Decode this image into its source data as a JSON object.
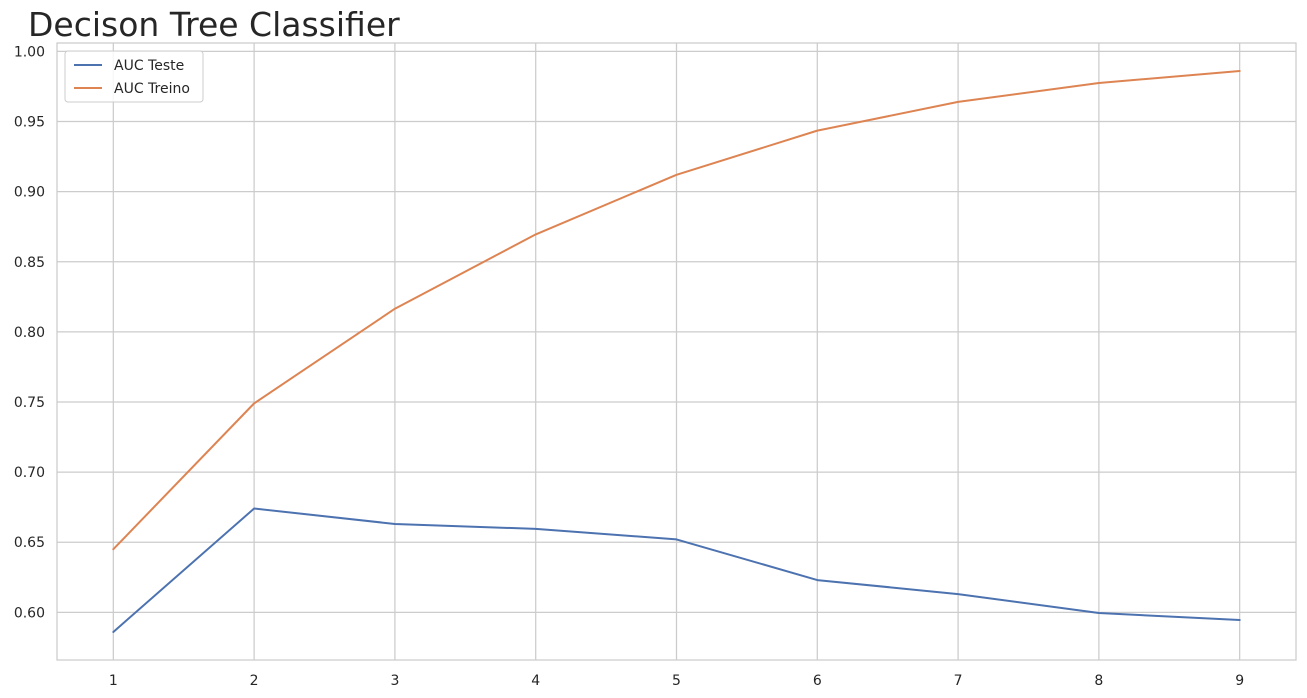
{
  "chart_data": {
    "type": "line",
    "title": "Decison Tree Classifier",
    "xlabel": "",
    "ylabel": "",
    "x": [
      1,
      2,
      3,
      4,
      5,
      6,
      7,
      8,
      9
    ],
    "xticks": [
      "1",
      "2",
      "3",
      "4",
      "5",
      "6",
      "7",
      "8",
      "9"
    ],
    "xlim": [
      0.6,
      9.4
    ],
    "ylim": [
      0.566,
      1.006
    ],
    "yticks": [
      "0.60",
      "0.65",
      "0.70",
      "0.75",
      "0.80",
      "0.85",
      "0.90",
      "0.95",
      "1.00"
    ],
    "ytick_values": [
      0.6,
      0.65,
      0.7,
      0.75,
      0.8,
      0.85,
      0.9,
      0.95,
      1.0
    ],
    "grid": true,
    "legend_position": "top-left",
    "series": [
      {
        "name": "AUC Teste",
        "color": "#4c72b0",
        "values": [
          0.586,
          0.674,
          0.663,
          0.6595,
          0.652,
          0.623,
          0.613,
          0.5995,
          0.5945
        ]
      },
      {
        "name": "AUC Treino",
        "color": "#dd8452",
        "values": [
          0.645,
          0.749,
          0.8165,
          0.8695,
          0.912,
          0.9435,
          0.964,
          0.9775,
          0.986
        ]
      }
    ]
  }
}
